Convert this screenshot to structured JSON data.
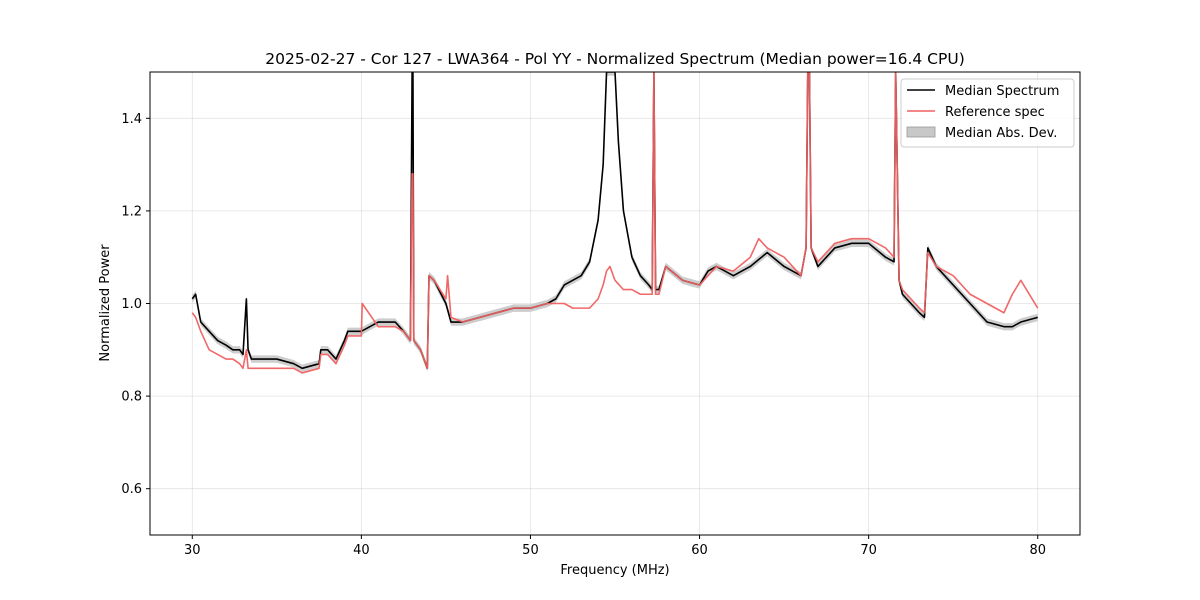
{
  "chart_data": {
    "type": "line",
    "title": "2025-02-27 - Cor 127 - LWA364 - Pol YY - Normalized Spectrum (Median power=16.4 CPU)",
    "xlabel": "Frequency (MHz)",
    "ylabel": "Normalized Power",
    "xlim": [
      27.5,
      82.5
    ],
    "ylim": [
      0.5,
      1.5
    ],
    "xticks": [
      30,
      40,
      50,
      60,
      70,
      80
    ],
    "yticks": [
      0.6,
      0.8,
      1.0,
      1.2,
      1.4
    ],
    "xtick_labels": [
      "30",
      "40",
      "50",
      "60",
      "70",
      "80"
    ],
    "ytick_labels": [
      "0.6",
      "0.8",
      "1.0",
      "1.2",
      "1.4"
    ],
    "grid": true,
    "legend_position": "top-right",
    "series": [
      {
        "name": "Median Spectrum",
        "color": "#000000",
        "x": [
          30.0,
          30.2,
          30.5,
          31.0,
          31.5,
          32.0,
          32.4,
          32.8,
          33.0,
          33.2,
          33.3,
          33.5,
          34.0,
          35.0,
          36.0,
          36.5,
          37.5,
          37.6,
          38.0,
          38.5,
          39.0,
          39.2,
          40.0,
          41.0,
          42.0,
          42.5,
          42.9,
          43.0,
          43.05,
          43.1,
          43.5,
          43.9,
          44.0,
          44.3,
          45.0,
          45.3,
          46.0,
          47.0,
          48.0,
          49.0,
          50.0,
          51.0,
          51.5,
          52.0,
          52.5,
          53.0,
          53.5,
          54.0,
          54.3,
          54.5,
          55.0,
          55.2,
          55.5,
          56.0,
          56.5,
          57.0,
          57.2,
          57.3,
          57.4,
          57.6,
          58.0,
          59.0,
          60.0,
          60.5,
          61.0,
          62.0,
          63.0,
          64.0,
          65.0,
          66.0,
          66.3,
          66.4,
          66.5,
          66.6,
          66.8,
          67.0,
          68.0,
          69.0,
          70.0,
          71.0,
          71.5,
          71.6,
          71.8,
          72.0,
          72.5,
          73.0,
          73.3,
          73.5,
          74.0,
          75.0,
          76.0,
          77.0,
          78.0,
          78.5,
          79.0,
          80.0
        ],
        "values": [
          1.01,
          1.02,
          0.96,
          0.94,
          0.92,
          0.91,
          0.9,
          0.9,
          0.89,
          1.01,
          0.9,
          0.88,
          0.88,
          0.88,
          0.87,
          0.86,
          0.87,
          0.9,
          0.9,
          0.88,
          0.92,
          0.94,
          0.94,
          0.96,
          0.96,
          0.94,
          0.92,
          1.5,
          1.5,
          0.92,
          0.9,
          0.86,
          1.06,
          1.05,
          1.0,
          0.96,
          0.96,
          0.97,
          0.98,
          0.99,
          0.99,
          1.0,
          1.01,
          1.04,
          1.05,
          1.06,
          1.09,
          1.18,
          1.3,
          1.5,
          1.5,
          1.35,
          1.2,
          1.1,
          1.06,
          1.04,
          1.03,
          1.5,
          1.03,
          1.03,
          1.08,
          1.05,
          1.04,
          1.07,
          1.08,
          1.06,
          1.08,
          1.11,
          1.08,
          1.06,
          1.12,
          1.5,
          1.5,
          1.12,
          1.1,
          1.08,
          1.12,
          1.13,
          1.13,
          1.1,
          1.09,
          1.5,
          1.05,
          1.02,
          1.0,
          0.98,
          0.97,
          1.12,
          1.08,
          1.04,
          1.0,
          0.96,
          0.95,
          0.95,
          0.96,
          0.97
        ]
      },
      {
        "name": "Reference spec",
        "color": "#f06060",
        "x": [
          30.0,
          30.2,
          30.5,
          31.0,
          31.5,
          32.0,
          32.4,
          32.8,
          33.0,
          33.2,
          33.3,
          33.5,
          34.0,
          35.0,
          36.0,
          36.5,
          37.5,
          37.6,
          38.0,
          38.5,
          39.0,
          39.2,
          40.0,
          40.05,
          41.0,
          42.0,
          42.5,
          42.9,
          43.0,
          43.05,
          43.1,
          43.5,
          43.9,
          44.0,
          44.3,
          45.0,
          45.1,
          45.3,
          46.0,
          47.0,
          48.0,
          49.0,
          50.0,
          51.0,
          52.0,
          52.5,
          53.0,
          53.5,
          54.0,
          54.3,
          54.5,
          54.7,
          55.0,
          55.5,
          56.0,
          56.5,
          57.0,
          57.2,
          57.3,
          57.4,
          57.6,
          58.0,
          59.0,
          60.0,
          61.0,
          62.0,
          63.0,
          63.5,
          64.0,
          65.0,
          66.0,
          66.3,
          66.4,
          66.5,
          66.6,
          67.0,
          68.0,
          69.0,
          70.0,
          71.0,
          71.5,
          71.6,
          71.8,
          72.0,
          72.5,
          73.0,
          73.3,
          73.5,
          74.0,
          75.0,
          76.0,
          77.0,
          78.0,
          78.5,
          79.0,
          80.0
        ],
        "values": [
          0.98,
          0.97,
          0.94,
          0.9,
          0.89,
          0.88,
          0.88,
          0.87,
          0.86,
          0.9,
          0.86,
          0.86,
          0.86,
          0.86,
          0.86,
          0.85,
          0.86,
          0.89,
          0.89,
          0.87,
          0.91,
          0.93,
          0.93,
          1.0,
          0.95,
          0.95,
          0.94,
          0.92,
          1.28,
          1.28,
          0.92,
          0.9,
          0.86,
          1.06,
          1.05,
          1.01,
          1.06,
          0.97,
          0.96,
          0.97,
          0.98,
          0.99,
          0.99,
          1.0,
          1.0,
          0.99,
          0.99,
          0.99,
          1.01,
          1.04,
          1.07,
          1.08,
          1.05,
          1.03,
          1.03,
          1.02,
          1.02,
          1.02,
          1.5,
          1.02,
          1.02,
          1.08,
          1.05,
          1.04,
          1.08,
          1.07,
          1.1,
          1.14,
          1.12,
          1.1,
          1.06,
          1.12,
          1.5,
          1.5,
          1.12,
          1.09,
          1.13,
          1.14,
          1.14,
          1.12,
          1.1,
          1.5,
          1.05,
          1.03,
          1.01,
          0.99,
          0.98,
          1.11,
          1.08,
          1.06,
          1.02,
          1.0,
          0.98,
          1.02,
          1.05,
          0.99
        ]
      },
      {
        "name": "Median Abs. Dev.",
        "color": "#c8c8c8",
        "type": "band",
        "half_width": 0.008
      }
    ]
  }
}
